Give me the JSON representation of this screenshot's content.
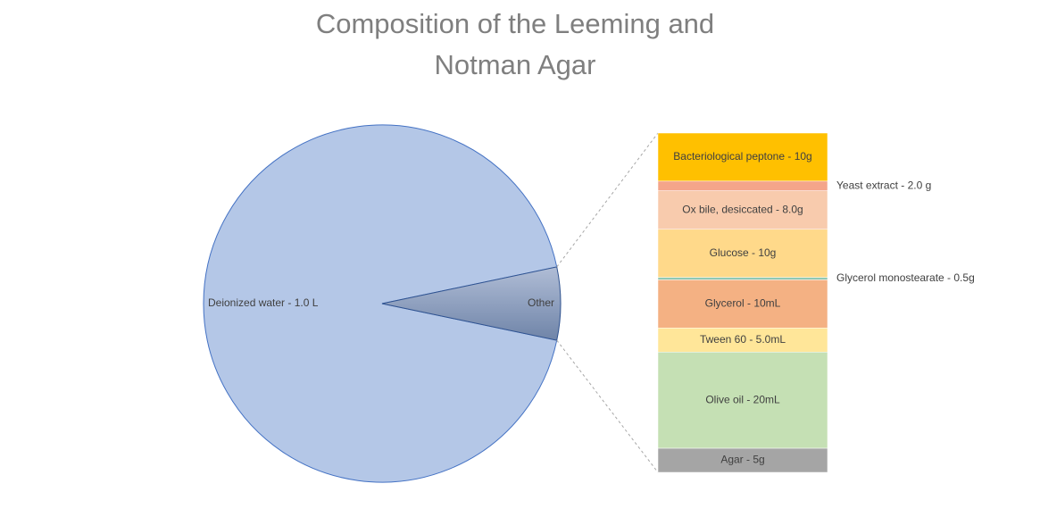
{
  "chart_data": {
    "type": "pie-of-bar",
    "title": "Composition of the Leeming and Notman Agar",
    "pie": {
      "categories": [
        "Deionized water - 1.0 L"
      ],
      "values": [
        1000
      ],
      "color": "#b4c7e7",
      "other_label": "Other"
    },
    "bar": {
      "categories": [
        "Bacteriological peptone - 10g",
        "Yeast extract - 2.0 g",
        "Ox bile, desiccated - 8.0g",
        "Glucose - 10g",
        "Glycerol monostearate - 0.5g",
        "Glycerol - 10mL",
        "Tween 60 - 5.0mL",
        "Olive oil - 20mL",
        "Agar - 5g"
      ],
      "values": [
        10,
        2,
        8,
        10,
        0.5,
        10,
        5,
        20,
        5
      ],
      "colors": [
        "#ffc000",
        "#f4a58a",
        "#f8cbad",
        "#ffd98a",
        "#8fc9b5",
        "#f4b183",
        "#ffe699",
        "#c5e0b4",
        "#a5a5a5"
      ]
    }
  }
}
